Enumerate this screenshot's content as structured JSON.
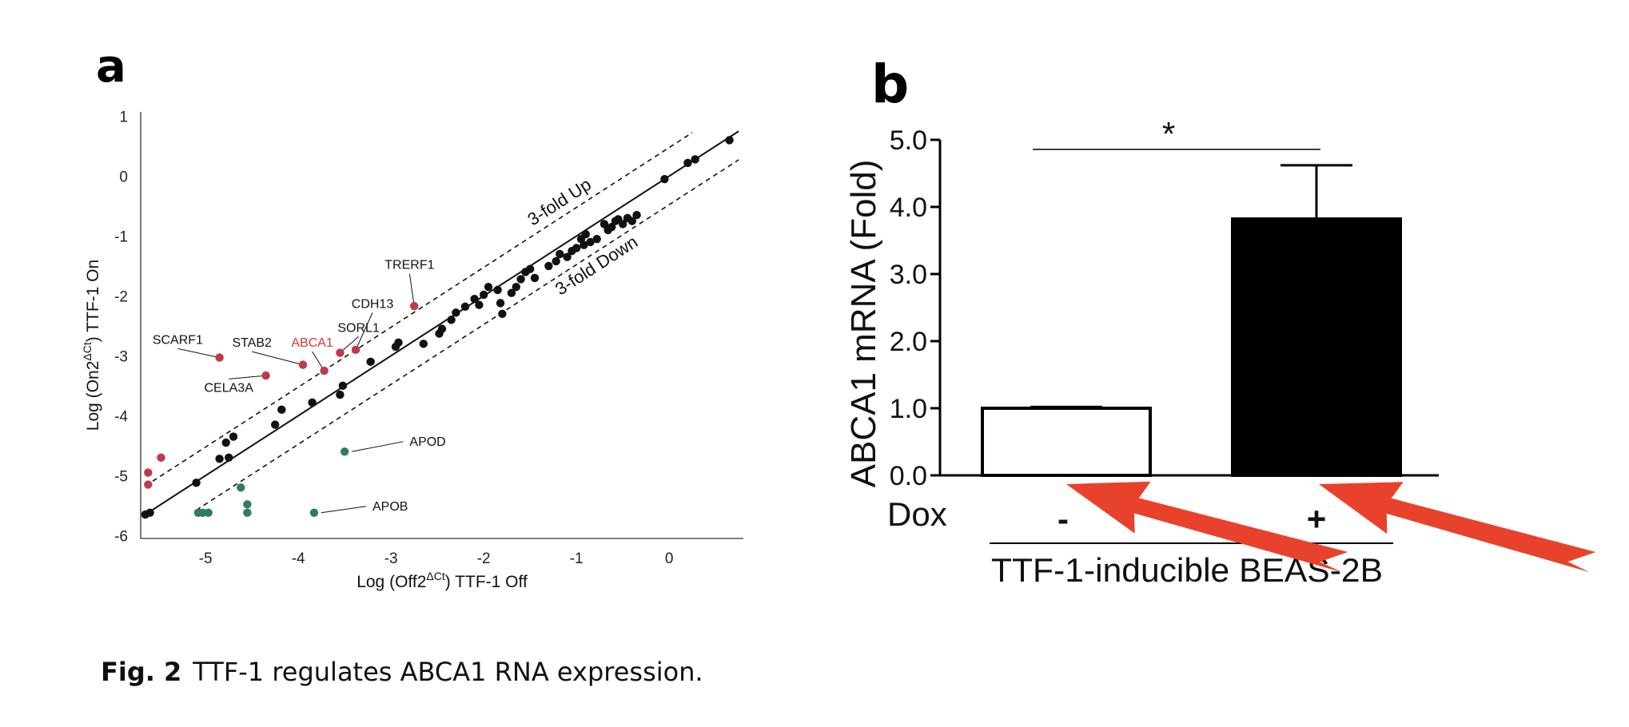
{
  "panels": {
    "a": "a",
    "b": "b"
  },
  "caption": {
    "label": "Fig. 2",
    "text": "TTF-1 regulates ABCA1 RNA expression."
  },
  "chart_data": [
    {
      "type": "scatter",
      "panel": "a",
      "xlabel": "Log (Off2ΔCt) TTF-1 Off",
      "ylabel": "Log (On2ΔCt) TTF-1 On",
      "xlabel_parts": {
        "pre": "Log (Off2",
        "sup": "ΔCt",
        "post": ") TTF-1 Off"
      },
      "ylabel_parts": {
        "pre": "Log (On2",
        "sup": "ΔCt",
        "post": ") TTF-1 On"
      },
      "xlim": [
        -5.7,
        0.8
      ],
      "ylim": [
        -6.05,
        1.1
      ],
      "xticks": [
        -5,
        -4,
        -3,
        -2,
        -1,
        0
      ],
      "yticks": [
        1,
        0,
        -1,
        -2,
        -3,
        -4,
        -5,
        -6
      ],
      "reference_lines": [
        {
          "type": "identity",
          "style": "solid"
        },
        {
          "label": "3-fold Up",
          "offset": 0.477,
          "style": "dashed"
        },
        {
          "label": "3-fold Down",
          "offset": -0.477,
          "style": "dashed"
        }
      ],
      "colors": {
        "unchanged": "#111111",
        "up": "#c0394b",
        "down": "#2e7d5b",
        "highlight_label": "#d23a3a"
      },
      "series": [
        {
          "group": "unchanged",
          "points": [
            [
              -5.65,
              -5.65
            ],
            [
              -5.6,
              -5.62
            ],
            [
              -5.1,
              -5.12
            ],
            [
              -4.85,
              -4.72
            ],
            [
              -4.75,
              -4.7
            ],
            [
              -4.78,
              -4.45
            ],
            [
              -4.7,
              -4.35
            ],
            [
              -4.25,
              -4.15
            ],
            [
              -4.18,
              -3.9
            ],
            [
              -3.85,
              -3.78
            ],
            [
              -3.55,
              -3.65
            ],
            [
              -3.52,
              -3.5
            ],
            [
              -3.22,
              -3.1
            ],
            [
              -2.95,
              -2.85
            ],
            [
              -2.92,
              -2.78
            ],
            [
              -2.65,
              -2.8
            ],
            [
              -2.48,
              -2.63
            ],
            [
              -2.45,
              -2.55
            ],
            [
              -2.35,
              -2.4
            ],
            [
              -2.3,
              -2.28
            ],
            [
              -2.2,
              -2.18
            ],
            [
              -2.1,
              -2.05
            ],
            [
              -2.05,
              -2.15
            ],
            [
              -2.0,
              -1.98
            ],
            [
              -1.95,
              -1.85
            ],
            [
              -1.85,
              -1.9
            ],
            [
              -1.82,
              -2.12
            ],
            [
              -1.8,
              -2.3
            ],
            [
              -1.7,
              -1.95
            ],
            [
              -1.65,
              -1.85
            ],
            [
              -1.6,
              -1.72
            ],
            [
              -1.55,
              -1.6
            ],
            [
              -1.5,
              -1.55
            ],
            [
              -1.45,
              -1.7
            ],
            [
              -1.3,
              -1.5
            ],
            [
              -1.22,
              -1.42
            ],
            [
              -1.18,
              -1.3
            ],
            [
              -1.1,
              -1.35
            ],
            [
              -1.05,
              -1.25
            ],
            [
              -1.0,
              -1.2
            ],
            [
              -0.95,
              -1.05
            ],
            [
              -0.92,
              -1.15
            ],
            [
              -0.85,
              -1.1
            ],
            [
              -0.78,
              -1.05
            ],
            [
              -0.9,
              -0.97
            ],
            [
              -0.7,
              -0.8
            ],
            [
              -0.66,
              -0.9
            ],
            [
              -0.62,
              -0.85
            ],
            [
              -0.58,
              -0.75
            ],
            [
              -0.55,
              -0.72
            ],
            [
              -0.5,
              -0.8
            ],
            [
              -0.45,
              -0.7
            ],
            [
              -0.4,
              -0.75
            ],
            [
              -0.35,
              -0.65
            ],
            [
              -0.05,
              -0.05
            ],
            [
              0.2,
              0.22
            ],
            [
              0.28,
              0.28
            ],
            [
              0.65,
              0.6
            ]
          ]
        },
        {
          "group": "up",
          "points": [
            [
              -5.62,
              -5.15
            ],
            [
              -5.62,
              -4.95
            ],
            [
              -5.48,
              -4.7
            ],
            [
              -4.85,
              -3.03
            ],
            [
              -4.35,
              -3.33
            ],
            [
              -3.95,
              -3.15
            ],
            [
              -3.72,
              -3.25
            ],
            [
              -3.55,
              -2.95
            ],
            [
              -3.38,
              -2.9
            ],
            [
              -2.75,
              -2.17
            ]
          ]
        },
        {
          "group": "down",
          "points": [
            [
              -5.08,
              -5.62
            ],
            [
              -5.03,
              -5.62
            ],
            [
              -4.97,
              -5.62
            ],
            [
              -4.62,
              -5.2
            ],
            [
              -4.55,
              -5.48
            ],
            [
              -4.55,
              -5.62
            ],
            [
              -3.83,
              -5.62
            ],
            [
              -3.5,
              -4.6
            ]
          ]
        }
      ],
      "annotations": [
        {
          "label": "SCARF1",
          "point": [
            -4.85,
            -3.03
          ],
          "text_at": [
            -5.3,
            -2.8
          ],
          "highlight": false
        },
        {
          "label": "STAB2",
          "point": [
            -3.95,
            -3.15
          ],
          "text_at": [
            -4.5,
            -2.85
          ],
          "highlight": false
        },
        {
          "label": "ABCA1",
          "point": [
            -3.72,
            -3.25
          ],
          "text_at": [
            -3.85,
            -2.85
          ],
          "highlight": true
        },
        {
          "label": "SORL1",
          "point": [
            -3.55,
            -2.95
          ],
          "text_at": [
            -3.35,
            -2.6
          ],
          "highlight": false
        },
        {
          "label": "CDH13",
          "point": [
            -3.38,
            -2.9
          ],
          "text_at": [
            -3.2,
            -2.2
          ],
          "highlight": false
        },
        {
          "label": "TRERF1",
          "point": [
            -2.75,
            -2.17
          ],
          "text_at": [
            -2.8,
            -1.55
          ],
          "highlight": false
        },
        {
          "label": "CELA3A",
          "point": [
            -4.35,
            -3.33
          ],
          "text_at": [
            -4.75,
            -3.6
          ],
          "highlight": false
        },
        {
          "label": "APOD",
          "point": [
            -3.5,
            -4.6
          ],
          "text_at": [
            -2.8,
            -4.5
          ],
          "highlight": false
        },
        {
          "label": "APOB",
          "point": [
            -3.83,
            -5.62
          ],
          "text_at": [
            -3.2,
            -5.58
          ],
          "highlight": false
        }
      ]
    },
    {
      "type": "bar",
      "panel": "b",
      "ylabel": "ABCA1 mRNA (Fold)",
      "ylim": [
        0,
        5.0
      ],
      "yticks": [
        "0.0",
        "1.0",
        "2.0",
        "3.0",
        "4.0",
        "5.0"
      ],
      "row_label": "Dox",
      "categories": [
        "-",
        "+"
      ],
      "values": [
        1.0,
        3.82
      ],
      "errors": [
        0.02,
        0.8
      ],
      "fills": [
        "#ffffff",
        "#000000"
      ],
      "significance": "*",
      "group_label": "TTF-1-inducible BEAS-2B",
      "arrow_color": "#e8422c"
    }
  ]
}
